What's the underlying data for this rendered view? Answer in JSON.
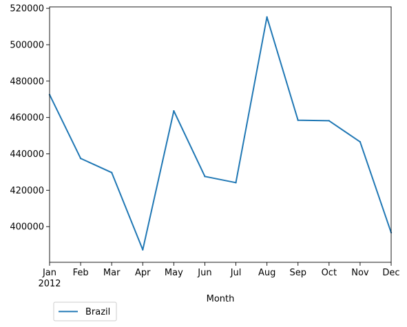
{
  "chart_data": {
    "type": "line",
    "xlabel": "Month",
    "ylabel": "",
    "categories": [
      "Jan",
      "Feb",
      "Mar",
      "Apr",
      "May",
      "Jun",
      "Jul",
      "Aug",
      "Sep",
      "Oct",
      "Nov",
      "Dec"
    ],
    "year_label": "2012",
    "x": [
      "2012-01",
      "2012-02",
      "2012-03",
      "2012-04",
      "2012-05",
      "2012-06",
      "2012-07",
      "2012-08",
      "2012-09",
      "2012-10",
      "2012-11",
      "2012-12"
    ],
    "ylim": [
      380400,
      520800
    ],
    "yticks": [
      400000,
      420000,
      440000,
      460000,
      480000,
      500000,
      520000
    ],
    "grid": false,
    "legend_position": "bottom-left",
    "series": [
      {
        "name": "Brazil",
        "color": "#1f77b4",
        "values": [
          472500,
          437500,
          429700,
          387300,
          463600,
          427600,
          424200,
          515200,
          458500,
          458200,
          446600,
          396700
        ]
      }
    ]
  }
}
